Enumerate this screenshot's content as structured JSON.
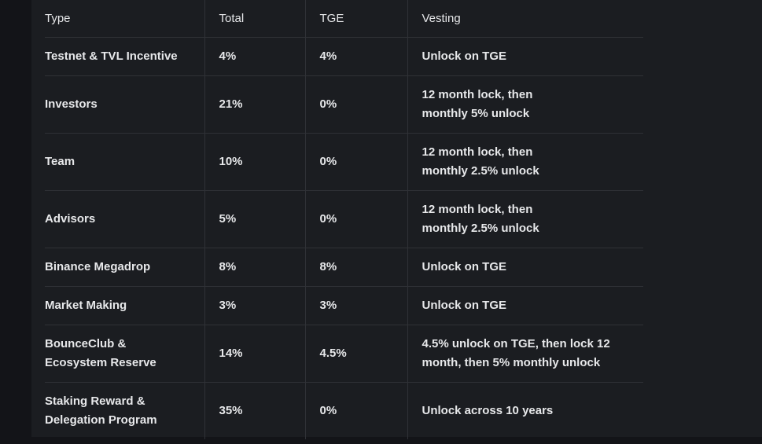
{
  "colors": {
    "page_bg": "#131418",
    "card_bg": "#1b1d21",
    "border": "#2f3136",
    "text": "#e7e8ea"
  },
  "table": {
    "columns": [
      "Type",
      "Total",
      "TGE",
      "Vesting"
    ],
    "rows": [
      {
        "type": "Testnet & TVL Incentive",
        "total": "4%",
        "tge": "4%",
        "vesting": "Unlock on TGE"
      },
      {
        "type": "Investors",
        "total": "21%",
        "tge": "0%",
        "vesting": "12 month lock, then\nmonthly 5% unlock"
      },
      {
        "type": "Team",
        "total": "10%",
        "tge": "0%",
        "vesting": "12 month lock, then\nmonthly 2.5% unlock"
      },
      {
        "type": "Advisors",
        "total": "5%",
        "tge": "0%",
        "vesting": "12 month lock, then\nmonthly 2.5% unlock"
      },
      {
        "type": "Binance Megadrop",
        "total": "8%",
        "tge": "8%",
        "vesting": "Unlock on TGE"
      },
      {
        "type": "Market Making",
        "total": "3%",
        "tge": "3%",
        "vesting": "Unlock on TGE"
      },
      {
        "type": "BounceClub &\nEcosystem Reserve",
        "total": "14%",
        "tge": "4.5%",
        "vesting": "4.5% unlock on TGE, then lock 12\nmonth, then 5% monthly unlock"
      },
      {
        "type": "Staking Reward &\nDelegation Program",
        "total": "35%",
        "tge": "0%",
        "vesting": "Unlock across 10 years"
      }
    ]
  }
}
